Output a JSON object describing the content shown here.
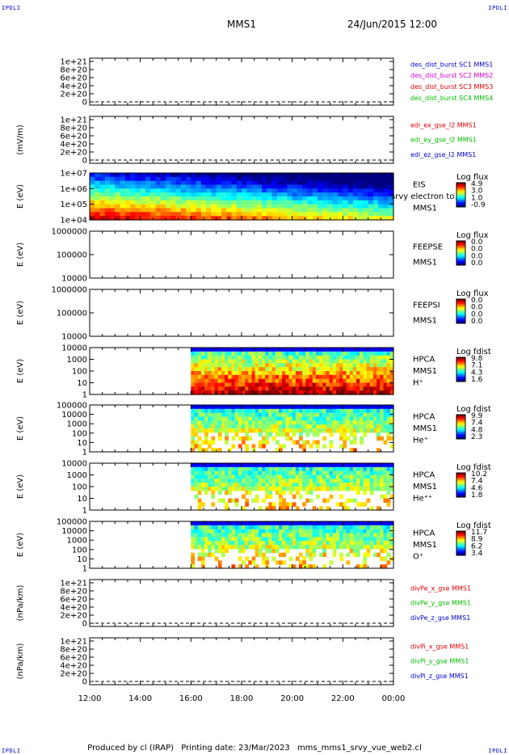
{
  "corners": {
    "top_left": "IPDLI",
    "top_right": "IPDLI",
    "bottom_left": "IPDLI",
    "bottom_right": "IPDLI"
  },
  "header": {
    "spacecraft": "MMS1",
    "datetime": "24/Jun/2015 12:00"
  },
  "footer": {
    "produced_by": "Produced by cl (IRAP)",
    "printing_date": "Printing date: 23/Mar/2023",
    "file": "mms_mms1_srvy_vue_web2.cl"
  },
  "colors": {
    "blue": "#0000cc",
    "red": "#dd0000",
    "green": "#00bb00",
    "magenta": "#cc00cc"
  },
  "time_axis": {
    "labels": [
      "12:00",
      "14:00",
      "16:00",
      "18:00",
      "20:00",
      "22:00",
      "00:00"
    ],
    "start_hour": 12,
    "end_hour": 24
  },
  "chart_data": [
    {
      "type": "line",
      "ylabel": "",
      "yticks": [
        "1e+21",
        "8e+20",
        "6e+20",
        "4e+20",
        "2e+20",
        "0"
      ],
      "zero_dashed": true,
      "legend": [
        {
          "text": "des_dist_burst SC1 MMS1",
          "color": "#0000cc"
        },
        {
          "text": "des_dist_burst SC2 MMS2",
          "color": "#cc00cc"
        },
        {
          "text": "des_dist_burst SC3 MMS3",
          "color": "#dd0000"
        },
        {
          "text": "des_dist_burst SC4 MMS4",
          "color": "#00bb00"
        }
      ]
    },
    {
      "type": "line",
      "ylabel": "(mV/m)",
      "yticks": [
        "1e+21",
        "8e+20",
        "6e+20",
        "4e+20",
        "2e+20",
        "0"
      ],
      "zero_dashed": true,
      "legend": [
        {
          "text": "edi_ex_gse_l2 MMS1",
          "color": "#dd0000"
        },
        {
          "text": "edi_ey_gse_l2 MMS1",
          "color": "#00bb00"
        },
        {
          "text": "edi_ez_gse_l2 MMS1",
          "color": "#0000cc"
        }
      ]
    },
    {
      "type": "heatmap",
      "ylabel": "E (eV)",
      "yticks": [
        "1e+07",
        "1e+06",
        "1e+05",
        "1e+04"
      ],
      "ylim": [
        10000,
        10000000
      ],
      "right_labels": [
        "EIS",
        "srvy electron to",
        "MMS1"
      ],
      "colorbar": {
        "title": "Log flux",
        "ticks": [
          "4.9",
          "3.0",
          "1.0",
          "-0.9"
        ]
      },
      "data_start_hour": 12.0
    },
    {
      "type": "heatmap",
      "ylabel": "E (eV)",
      "yticks": [
        "1000000",
        "100000",
        "10000"
      ],
      "ylim": [
        10000,
        1000000
      ],
      "right_labels": [
        "FEEPSE",
        "MMS1"
      ],
      "colorbar": {
        "title": "Log flux",
        "ticks": [
          "0.0",
          "0.0",
          "0.0",
          "0.0"
        ]
      }
    },
    {
      "type": "heatmap",
      "ylabel": "E (eV)",
      "yticks": [
        "1000000",
        "100000",
        "10000"
      ],
      "ylim": [
        10000,
        1000000
      ],
      "right_labels": [
        "FEEPSI",
        "MMS1"
      ],
      "colorbar": {
        "title": "Log flux",
        "ticks": [
          "0.0",
          "0.0",
          "0.0",
          "0.0"
        ]
      }
    },
    {
      "type": "heatmap",
      "ylabel": "E (eV)",
      "yticks": [
        "10000",
        "1000",
        "100",
        "10",
        "1"
      ],
      "ylim": [
        1,
        40000
      ],
      "right_labels": [
        "HPCA",
        "MMS1",
        "H⁺"
      ],
      "colorbar": {
        "title": "Log fdist",
        "ticks": [
          "9.8",
          "7.1",
          "4.3",
          "1.6"
        ]
      },
      "data_start_hour": 16.0
    },
    {
      "type": "heatmap",
      "ylabel": "E (eV)",
      "yticks": [
        "100000",
        "10000",
        "1000",
        "100",
        "10",
        "1"
      ],
      "ylim": [
        1,
        100000
      ],
      "right_labels": [
        "HPCA",
        "MMS1",
        "He⁺"
      ],
      "colorbar": {
        "title": "Log fdist",
        "ticks": [
          "9.9",
          "7.4",
          "4.8",
          "2.3"
        ]
      },
      "data_start_hour": 16.0
    },
    {
      "type": "heatmap",
      "ylabel": "E (eV)",
      "yticks": [
        "10000",
        "1000",
        "100",
        "10",
        "1"
      ],
      "ylim": [
        1,
        40000
      ],
      "right_labels": [
        "HPCA",
        "MMS1",
        "He⁺⁺"
      ],
      "colorbar": {
        "title": "Log fdist",
        "ticks": [
          "10.2",
          "7.4",
          "4.6",
          "1.8"
        ]
      },
      "data_start_hour": 16.0
    },
    {
      "type": "heatmap",
      "ylabel": "E (eV)",
      "yticks": [
        "100000",
        "10000",
        "1000",
        "100",
        "10",
        "1"
      ],
      "ylim": [
        1,
        100000
      ],
      "right_labels": [
        "HPCA",
        "MMS1",
        "O⁺"
      ],
      "colorbar": {
        "title": "Log fdist",
        "ticks": [
          "11.7",
          "8.9",
          "6.2",
          "3.4"
        ]
      },
      "data_start_hour": 16.0
    },
    {
      "type": "line",
      "ylabel": "(nPa/km)",
      "yticks": [
        "1e+21",
        "8e+20",
        "6e+20",
        "4e+20",
        "2e+20",
        "0"
      ],
      "zero_dashed": true,
      "legend": [
        {
          "text": "divPe_x_gse MMS1",
          "color": "#dd0000"
        },
        {
          "text": "divPe_y_gse MMS1",
          "color": "#00bb00"
        },
        {
          "text": "divPe_z_gse MMS1",
          "color": "#0000cc"
        }
      ]
    },
    {
      "type": "line",
      "ylabel": "(nPa/km)",
      "yticks": [
        "1e+21",
        "8e+20",
        "6e+20",
        "4e+20",
        "2e+20",
        "0"
      ],
      "zero_dashed": true,
      "legend": [
        {
          "text": "divPi_x_gse MMS1",
          "color": "#dd0000"
        },
        {
          "text": "divPi_y_gse MMS1",
          "color": "#00bb00"
        },
        {
          "text": "divPi_z_gse MMS1",
          "color": "#0000cc"
        }
      ]
    }
  ]
}
